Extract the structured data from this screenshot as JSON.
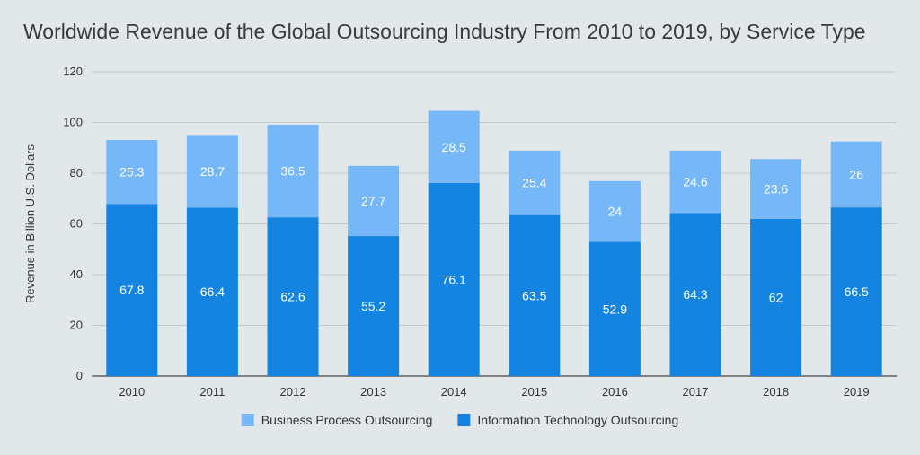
{
  "chart_data": {
    "type": "bar",
    "stacked": true,
    "title": "Worldwide Revenue of the Global Outsourcing Industry From 2010 to 2019, by Service Type",
    "xlabel": "",
    "ylabel": "Revenue in Billion U.S. Dollars",
    "ylim": [
      0,
      120
    ],
    "yticks": [
      0,
      20,
      40,
      60,
      80,
      100,
      120
    ],
    "grid": true,
    "legend_position": "bottom",
    "categories": [
      "2010",
      "2011",
      "2012",
      "2013",
      "2014",
      "2015",
      "2016",
      "2017",
      "2018",
      "2019"
    ],
    "series": [
      {
        "name": "Information Technology Outsourcing",
        "color": "#1384e0",
        "values": [
          67.8,
          66.4,
          62.6,
          55.2,
          76.1,
          63.5,
          52.9,
          64.3,
          62,
          66.5
        ],
        "labels": [
          "67.8",
          "66.4",
          "62.6",
          "55.2",
          "76.1",
          "63.5",
          "52.9",
          "64.3",
          "62",
          "66.5"
        ]
      },
      {
        "name": "Business Process Outsourcing",
        "color": "#76b7f8",
        "values": [
          25.3,
          28.7,
          36.5,
          27.7,
          28.5,
          25.4,
          24,
          24.6,
          23.6,
          26
        ],
        "labels": [
          "25.3",
          "28.7",
          "36.5",
          "27.7",
          "28.5",
          "25.4",
          "24",
          "24.6",
          "23.6",
          "26"
        ]
      }
    ],
    "legend_order": [
      1,
      0
    ]
  }
}
